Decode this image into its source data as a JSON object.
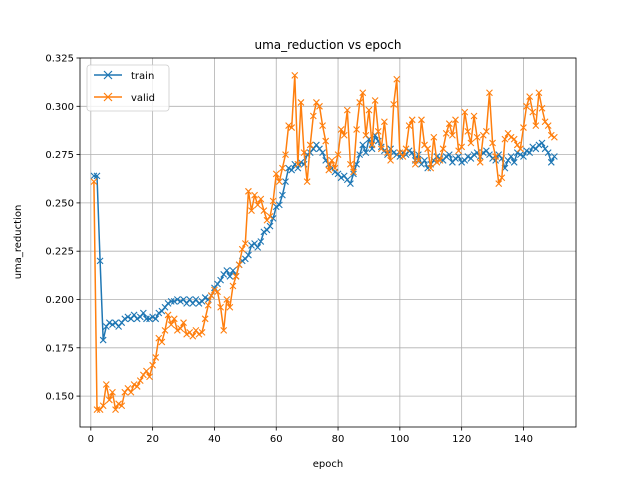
{
  "chart_data": {
    "type": "line",
    "title": "uma_reduction vs epoch",
    "xlabel": "epoch",
    "ylabel": "uma_reduction",
    "xlim": [
      -3.5,
      157
    ],
    "ylim": [
      0.134,
      0.325
    ],
    "x_ticks": [
      0,
      20,
      40,
      60,
      80,
      100,
      120,
      140
    ],
    "y_ticks": [
      0.15,
      0.175,
      0.2,
      0.225,
      0.25,
      0.275,
      0.3,
      0.325
    ],
    "x_tick_labels": [
      "0",
      "20",
      "40",
      "60",
      "80",
      "100",
      "120",
      "140"
    ],
    "y_tick_labels": [
      "0.150",
      "0.175",
      "0.200",
      "0.225",
      "0.250",
      "0.275",
      "0.300",
      "0.325"
    ],
    "grid": true,
    "legend_position": "top-left",
    "x": [
      1,
      2,
      3,
      4,
      5,
      6,
      7,
      8,
      9,
      10,
      11,
      12,
      13,
      14,
      15,
      16,
      17,
      18,
      19,
      20,
      21,
      22,
      23,
      24,
      25,
      26,
      27,
      28,
      29,
      30,
      31,
      32,
      33,
      34,
      35,
      36,
      37,
      38,
      39,
      40,
      41,
      42,
      43,
      44,
      45,
      46,
      47,
      48,
      49,
      50,
      51,
      52,
      53,
      54,
      55,
      56,
      57,
      58,
      59,
      60,
      61,
      62,
      63,
      64,
      65,
      66,
      67,
      68,
      69,
      70,
      71,
      72,
      73,
      74,
      75,
      76,
      77,
      78,
      79,
      80,
      81,
      82,
      83,
      84,
      85,
      86,
      87,
      88,
      89,
      90,
      91,
      92,
      93,
      94,
      95,
      96,
      97,
      98,
      99,
      100,
      101,
      102,
      103,
      104,
      105,
      106,
      107,
      108,
      109,
      110,
      111,
      112,
      113,
      114,
      115,
      116,
      117,
      118,
      119,
      120,
      121,
      122,
      123,
      124,
      125,
      126,
      127,
      128,
      129,
      130,
      131,
      132,
      133,
      134,
      135,
      136,
      137,
      138,
      139,
      140,
      141,
      142,
      143,
      144,
      145,
      146,
      147,
      148,
      149,
      150
    ],
    "series": [
      {
        "name": "train",
        "color": "#1f77b4",
        "marker": "x",
        "values": [
          0.264,
          0.264,
          0.22,
          0.179,
          0.186,
          0.188,
          0.187,
          0.188,
          0.186,
          0.188,
          0.19,
          0.191,
          0.19,
          0.192,
          0.19,
          0.191,
          0.193,
          0.19,
          0.19,
          0.191,
          0.19,
          0.193,
          0.194,
          0.196,
          0.198,
          0.199,
          0.199,
          0.2,
          0.199,
          0.2,
          0.198,
          0.2,
          0.198,
          0.2,
          0.198,
          0.199,
          0.201,
          0.2,
          0.202,
          0.206,
          0.208,
          0.21,
          0.213,
          0.215,
          0.212,
          0.215,
          0.212,
          0.218,
          0.22,
          0.221,
          0.223,
          0.228,
          0.229,
          0.227,
          0.23,
          0.235,
          0.236,
          0.238,
          0.242,
          0.248,
          0.249,
          0.254,
          0.261,
          0.268,
          0.267,
          0.27,
          0.268,
          0.271,
          0.27,
          0.275,
          0.276,
          0.278,
          0.28,
          0.278,
          0.276,
          0.272,
          0.27,
          0.268,
          0.266,
          0.265,
          0.263,
          0.264,
          0.262,
          0.26,
          0.265,
          0.27,
          0.275,
          0.28,
          0.276,
          0.283,
          0.278,
          0.285,
          0.282,
          0.279,
          0.277,
          0.275,
          0.278,
          0.276,
          0.275,
          0.274,
          0.276,
          0.275,
          0.277,
          0.276,
          0.272,
          0.275,
          0.27,
          0.272,
          0.268,
          0.27,
          0.272,
          0.274,
          0.273,
          0.272,
          0.274,
          0.275,
          0.271,
          0.273,
          0.274,
          0.271,
          0.272,
          0.274,
          0.273,
          0.275,
          0.276,
          0.274,
          0.276,
          0.277,
          0.275,
          0.273,
          0.272,
          0.275,
          0.273,
          0.268,
          0.272,
          0.274,
          0.271,
          0.276,
          0.275,
          0.274,
          0.277,
          0.276,
          0.279,
          0.278,
          0.28,
          0.281,
          0.278,
          0.276,
          0.271,
          0.274
        ]
      },
      {
        "name": "valid",
        "color": "#ff7f0e",
        "marker": "x",
        "values": [
          0.261,
          0.143,
          0.143,
          0.145,
          0.156,
          0.148,
          0.152,
          0.143,
          0.146,
          0.145,
          0.152,
          0.154,
          0.152,
          0.156,
          0.155,
          0.158,
          0.161,
          0.163,
          0.16,
          0.166,
          0.17,
          0.18,
          0.178,
          0.184,
          0.192,
          0.187,
          0.19,
          0.184,
          0.185,
          0.188,
          0.182,
          0.183,
          0.181,
          0.184,
          0.182,
          0.183,
          0.19,
          0.197,
          0.202,
          0.205,
          0.204,
          0.196,
          0.184,
          0.2,
          0.196,
          0.207,
          0.212,
          0.218,
          0.226,
          0.229,
          0.256,
          0.246,
          0.254,
          0.249,
          0.252,
          0.246,
          0.241,
          0.243,
          0.251,
          0.265,
          0.261,
          0.268,
          0.275,
          0.29,
          0.289,
          0.316,
          0.27,
          0.302,
          0.276,
          0.261,
          0.28,
          0.295,
          0.302,
          0.3,
          0.29,
          0.282,
          0.267,
          0.272,
          0.268,
          0.275,
          0.288,
          0.285,
          0.298,
          0.27,
          0.266,
          0.288,
          0.302,
          0.307,
          0.285,
          0.298,
          0.28,
          0.303,
          0.287,
          0.278,
          0.292,
          0.276,
          0.272,
          0.301,
          0.314,
          0.276,
          0.274,
          0.278,
          0.29,
          0.293,
          0.27,
          0.272,
          0.293,
          0.28,
          0.278,
          0.268,
          0.284,
          0.271,
          0.272,
          0.278,
          0.286,
          0.291,
          0.285,
          0.293,
          0.277,
          0.279,
          0.297,
          0.287,
          0.281,
          0.295,
          0.284,
          0.271,
          0.285,
          0.287,
          0.307,
          0.281,
          0.274,
          0.26,
          0.263,
          0.283,
          0.286,
          0.284,
          0.283,
          0.28,
          0.278,
          0.289,
          0.3,
          0.305,
          0.297,
          0.29,
          0.307,
          0.299,
          0.292,
          0.29,
          0.285,
          0.284
        ]
      }
    ]
  }
}
